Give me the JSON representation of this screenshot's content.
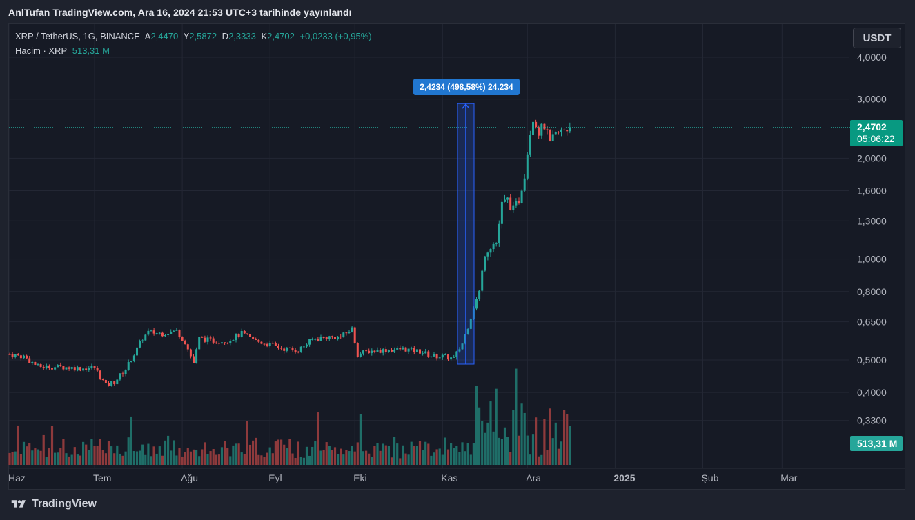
{
  "caption": "AnlTufan TradingView.com, Ara 16, 2024 21:53 UTC+3 tarihinde yayınlandı",
  "legend": {
    "symbol": "XRP / TetherUS, 1G, BINANCE",
    "o_label": "A",
    "o_value": "2,4470",
    "h_label": "Y",
    "h_value": "2,5872",
    "l_label": "D",
    "l_value": "2,3333",
    "c_label": "K",
    "c_value": "2,4702",
    "change": "+0,0233 (+0,95%)",
    "volume_label": "Hacim · XRP",
    "volume_value": "513,31 M"
  },
  "unit_button": "USDT",
  "price_badge": {
    "price": "2,4702",
    "countdown": "05:06:22"
  },
  "volume_badge": "513,31 M",
  "measure_label": "2,4234 (498,58%) 24.234",
  "footer_brand": "TradingView",
  "colors": {
    "up": "#26a69a",
    "down": "#ef5350",
    "vol_up": "#1f6e68",
    "vol_down": "#8e3a3c",
    "measure": "#2962ff",
    "background": "#161a25",
    "grid": "#232734"
  },
  "chart_data": {
    "type": "candlestick",
    "symbol": "XRP / TetherUS",
    "interval": "1G",
    "exchange": "BINANCE",
    "y_scale": "log",
    "y_ticks": [
      "4,0000",
      "3,0000",
      "2,0000",
      "1,6000",
      "1,3000",
      "1,0000",
      "0,8000",
      "0,6500",
      "0,5000",
      "0,4000",
      "0,3300"
    ],
    "y_tick_values": [
      4.0,
      3.0,
      2.0,
      1.6,
      1.3,
      1.0,
      0.8,
      0.65,
      0.5,
      0.4,
      0.33
    ],
    "x_ticks": [
      "Haz",
      "Tem",
      "Ağu",
      "Eyl",
      "Eki",
      "Kas",
      "Ara",
      "2025",
      "Şub",
      "Mar"
    ],
    "last_price": 2.4702,
    "measure": {
      "from": 0.486,
      "to": 2.91,
      "change": "2,4234 (498,58%) 24.234"
    },
    "path": [
      [
        "2024-06-01",
        0.52
      ],
      [
        "2024-06-06",
        0.512
      ],
      [
        "2024-06-11",
        0.478
      ],
      [
        "2024-06-16",
        0.477
      ],
      [
        "2024-06-21",
        0.476
      ],
      [
        "2024-06-26",
        0.472
      ],
      [
        "2024-07-01",
        0.475
      ],
      [
        "2024-07-05",
        0.42
      ],
      [
        "2024-07-08",
        0.43
      ],
      [
        "2024-07-12",
        0.47
      ],
      [
        "2024-07-15",
        0.52
      ],
      [
        "2024-07-18",
        0.58
      ],
      [
        "2024-07-20",
        0.605
      ],
      [
        "2024-07-25",
        0.6
      ],
      [
        "2024-07-30",
        0.61
      ],
      [
        "2024-08-02",
        0.565
      ],
      [
        "2024-08-05",
        0.49
      ],
      [
        "2024-08-07",
        0.58
      ],
      [
        "2024-08-12",
        0.57
      ],
      [
        "2024-08-17",
        0.57
      ],
      [
        "2024-08-22",
        0.6
      ],
      [
        "2024-08-27",
        0.57
      ],
      [
        "2024-09-01",
        0.555
      ],
      [
        "2024-09-06",
        0.54
      ],
      [
        "2024-09-11",
        0.535
      ],
      [
        "2024-09-16",
        0.575
      ],
      [
        "2024-09-21",
        0.585
      ],
      [
        "2024-09-26",
        0.585
      ],
      [
        "2024-09-30",
        0.62
      ],
      [
        "2024-10-02",
        0.52
      ],
      [
        "2024-10-06",
        0.532
      ],
      [
        "2024-10-12",
        0.535
      ],
      [
        "2024-10-18",
        0.54
      ],
      [
        "2024-10-24",
        0.53
      ],
      [
        "2024-10-28",
        0.515
      ],
      [
        "2024-11-01",
        0.512
      ],
      [
        "2024-11-05",
        0.505
      ],
      [
        "2024-11-08",
        0.56
      ],
      [
        "2024-11-10",
        0.63
      ],
      [
        "2024-11-12",
        0.72
      ],
      [
        "2024-11-14",
        0.8
      ],
      [
        "2024-11-16",
        1.05
      ],
      [
        "2024-11-18",
        1.1
      ],
      [
        "2024-11-20",
        1.12
      ],
      [
        "2024-11-22",
        1.45
      ],
      [
        "2024-11-24",
        1.5
      ],
      [
        "2024-11-26",
        1.4
      ],
      [
        "2024-11-28",
        1.5
      ],
      [
        "2024-11-30",
        1.8
      ],
      [
        "2024-12-02",
        2.4
      ],
      [
        "2024-12-03",
        2.65
      ],
      [
        "2024-12-05",
        2.4
      ],
      [
        "2024-12-07",
        2.5
      ],
      [
        "2024-12-09",
        2.2
      ],
      [
        "2024-12-11",
        2.35
      ],
      [
        "2024-12-13",
        2.4
      ],
      [
        "2024-12-16",
        2.4702
      ]
    ]
  }
}
